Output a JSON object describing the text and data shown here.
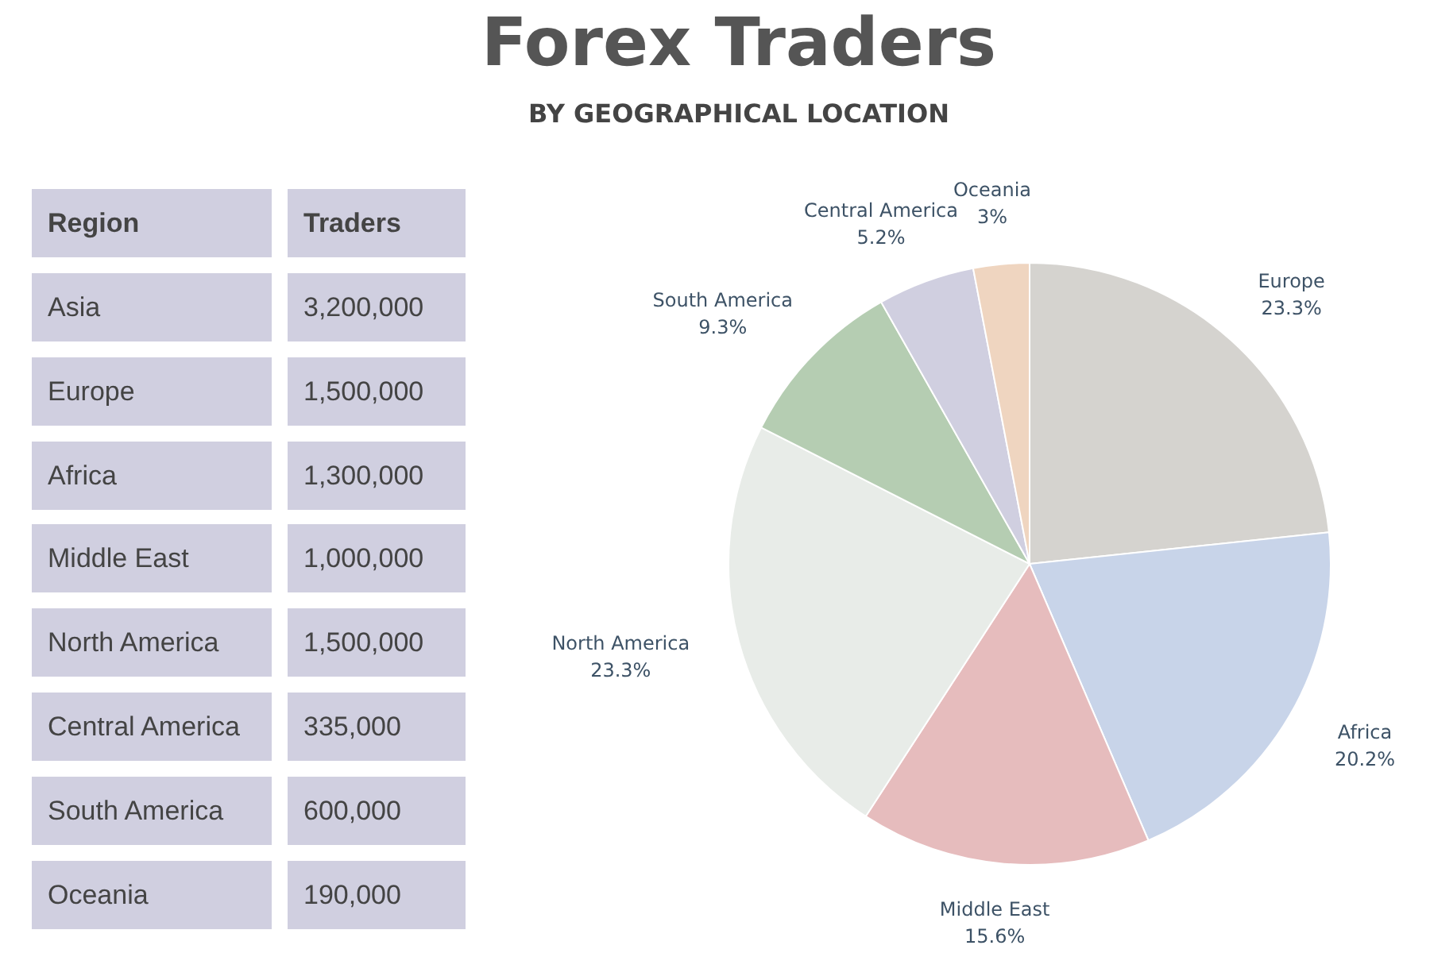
{
  "chart_data": [
    {
      "type": "other",
      "annotations": [
        "Region",
        "Traders"
      ],
      "categories": [
        "Asia",
        "Europe",
        "Africa",
        "Middle East",
        "North America",
        "Central America",
        "South America",
        "Oceania"
      ],
      "values": [
        3200000,
        1500000,
        1300000,
        1000000,
        1500000,
        335000,
        600000,
        190000
      ],
      "value_labels": [
        "3,200,000",
        "1,500,000",
        "1,300,000",
        "1,000,000",
        "1,500,000",
        "335,000",
        "600,000",
        "190,000"
      ]
    },
    {
      "type": "pie",
      "title": "Forex Traders",
      "subtitle": "BY GEOGRAPHICAL LOCATION",
      "categories": [
        "Europe",
        "Africa",
        "Middle East",
        "North America",
        "South America",
        "Central America",
        "Oceania"
      ],
      "values": [
        23.3,
        20.2,
        15.6,
        23.3,
        9.3,
        5.2,
        3
      ],
      "colors": [
        "#d5d3cf",
        "#c8d4e9",
        "#e6bcbd",
        "#e8ece8",
        "#b5cdb2",
        "#d0cfe0",
        "#efd5c0"
      ],
      "value_labels": [
        "23.3%",
        "20.2%",
        "15.6%",
        "23.3%",
        "9.3%",
        "5.2%",
        "3%"
      ],
      "legend": false
    }
  ]
}
